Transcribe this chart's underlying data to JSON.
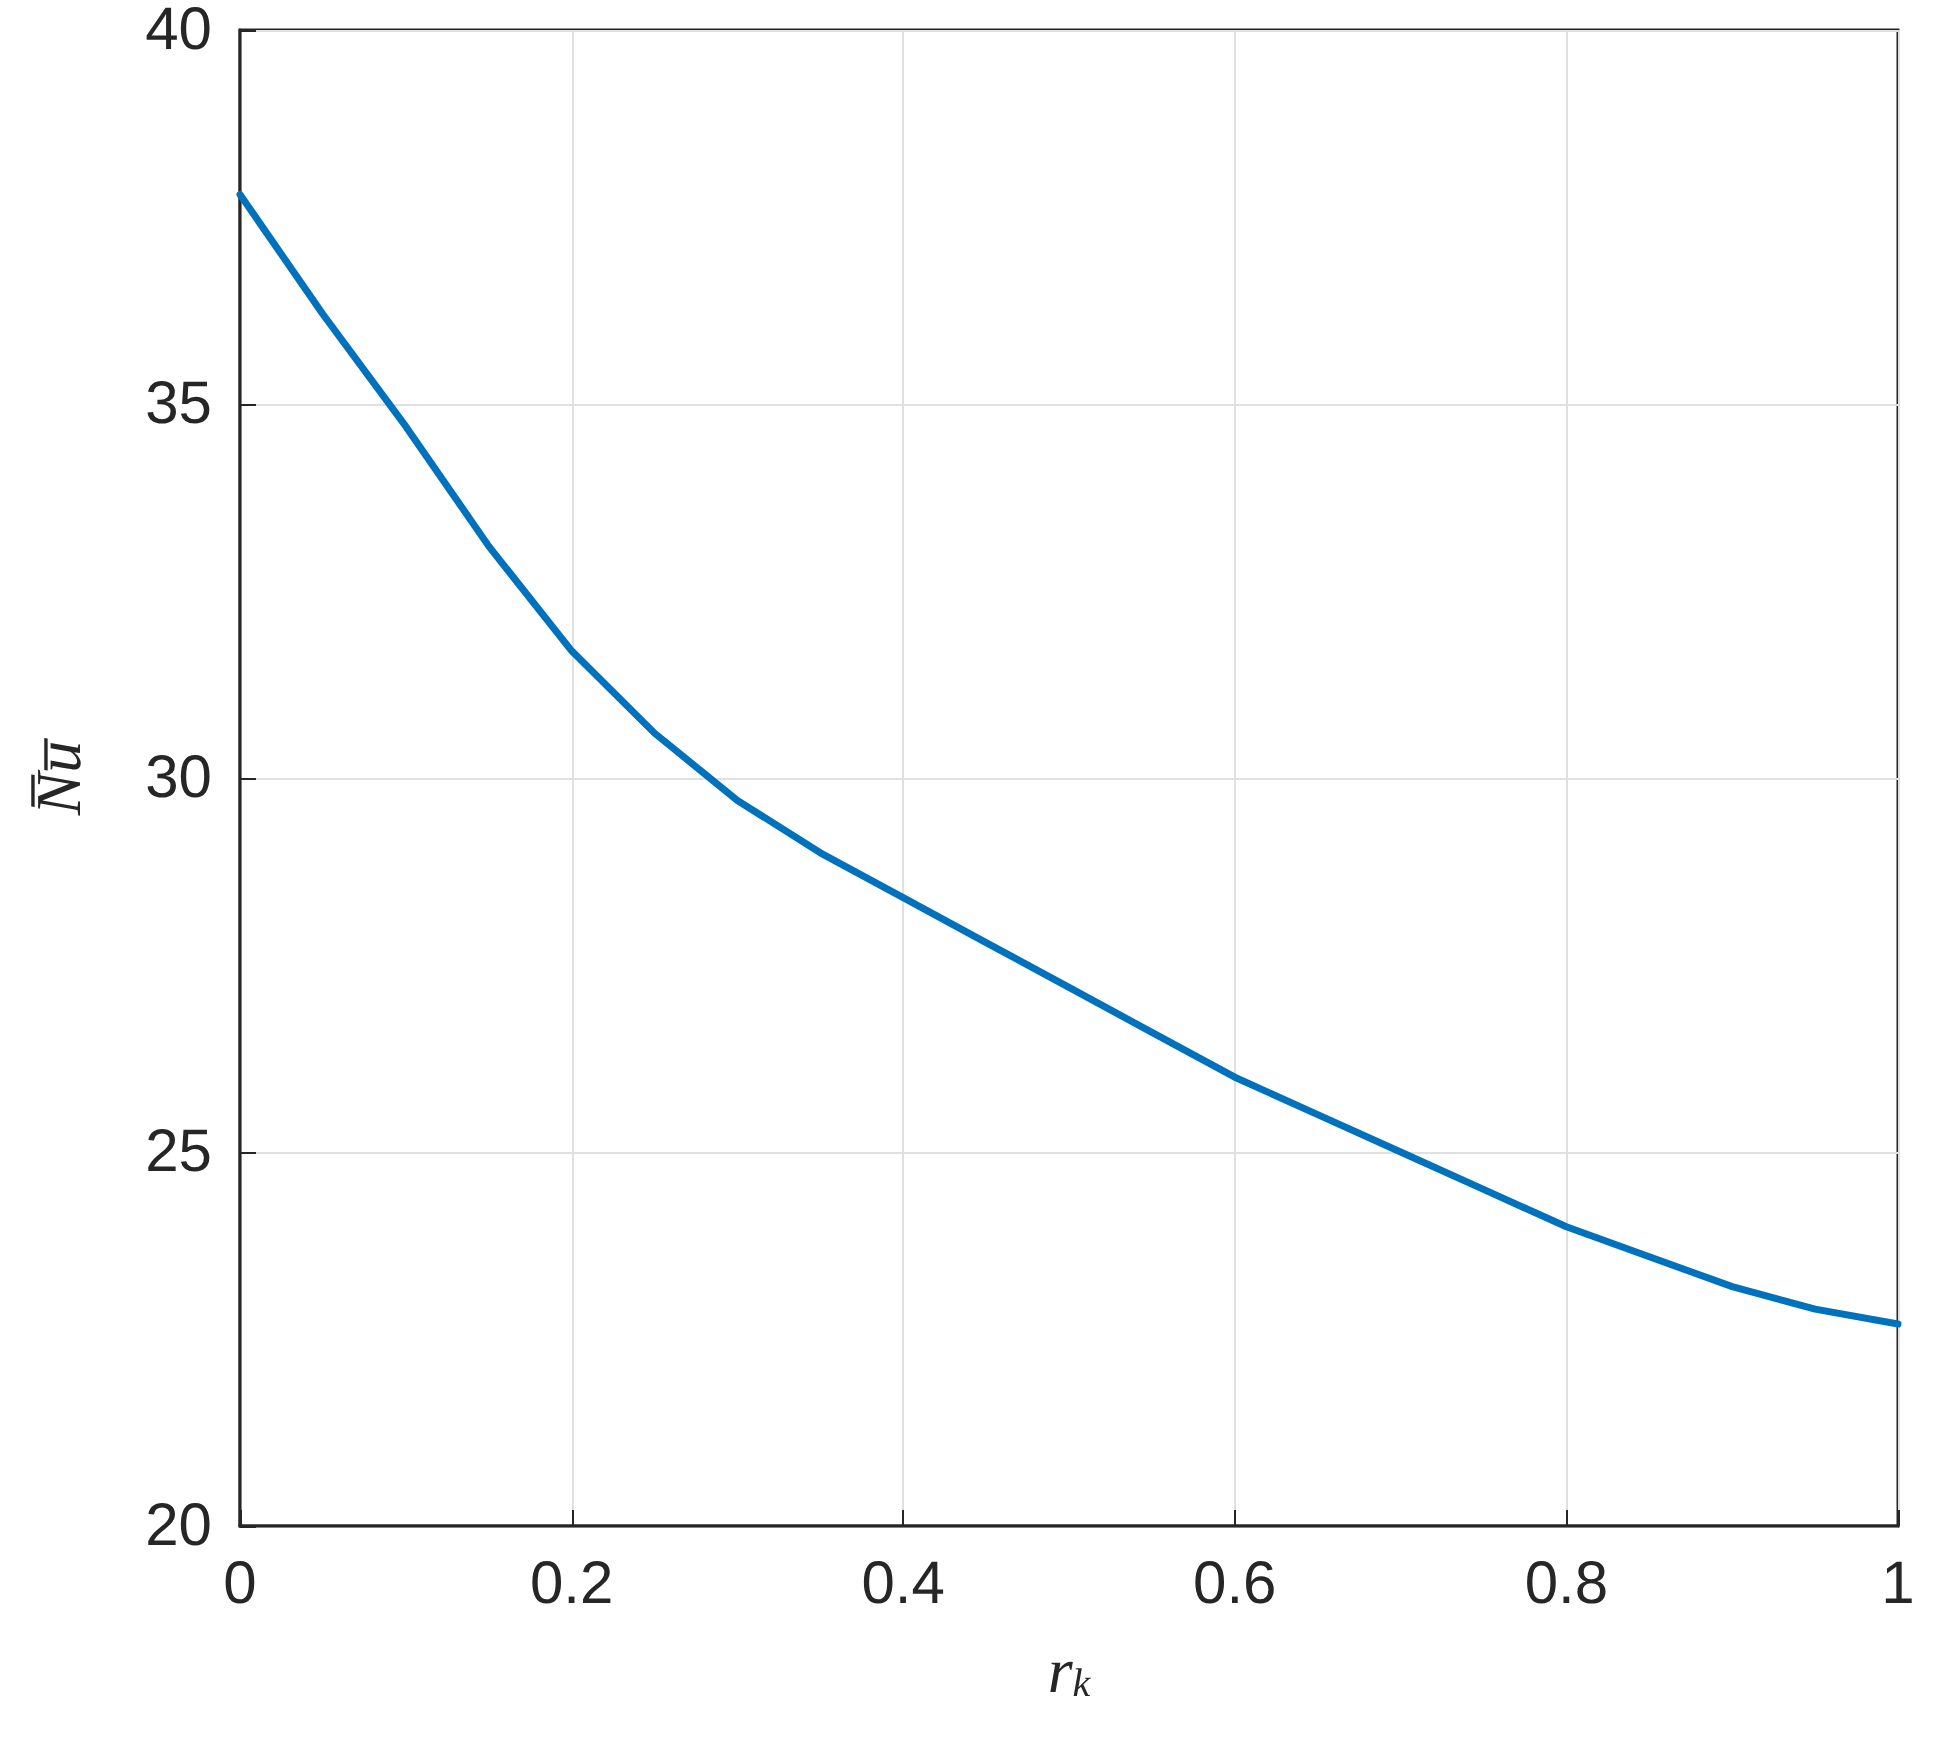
{
  "chart_data": {
    "type": "line",
    "xlabel": "r$_{k}$",
    "ylabel": "N̅u̅",
    "x": [
      0,
      0.05,
      0.1,
      0.15,
      0.2,
      0.25,
      0.3,
      0.35,
      0.4,
      0.45,
      0.5,
      0.55,
      0.6,
      0.65,
      0.7,
      0.75,
      0.8,
      0.85,
      0.9,
      0.95,
      1
    ],
    "series": [
      {
        "color": "#0072bd",
        "values": [
          37.8,
          36.2,
          34.7,
          33.1,
          31.7,
          30.6,
          29.7,
          29.0,
          28.4,
          27.8,
          27.2,
          26.6,
          26.0,
          25.5,
          25.0,
          24.5,
          24.0,
          23.6,
          23.2,
          22.9,
          22.7
        ]
      }
    ],
    "xlim": [
      0,
      1
    ],
    "xticks": [
      0,
      0.2,
      0.4,
      0.6,
      0.8,
      1
    ],
    "ylim": [
      20,
      40
    ],
    "yticks": [
      20,
      25,
      30,
      35,
      40
    ],
    "grid": true,
    "marker": "none",
    "line_style": "solid"
  }
}
